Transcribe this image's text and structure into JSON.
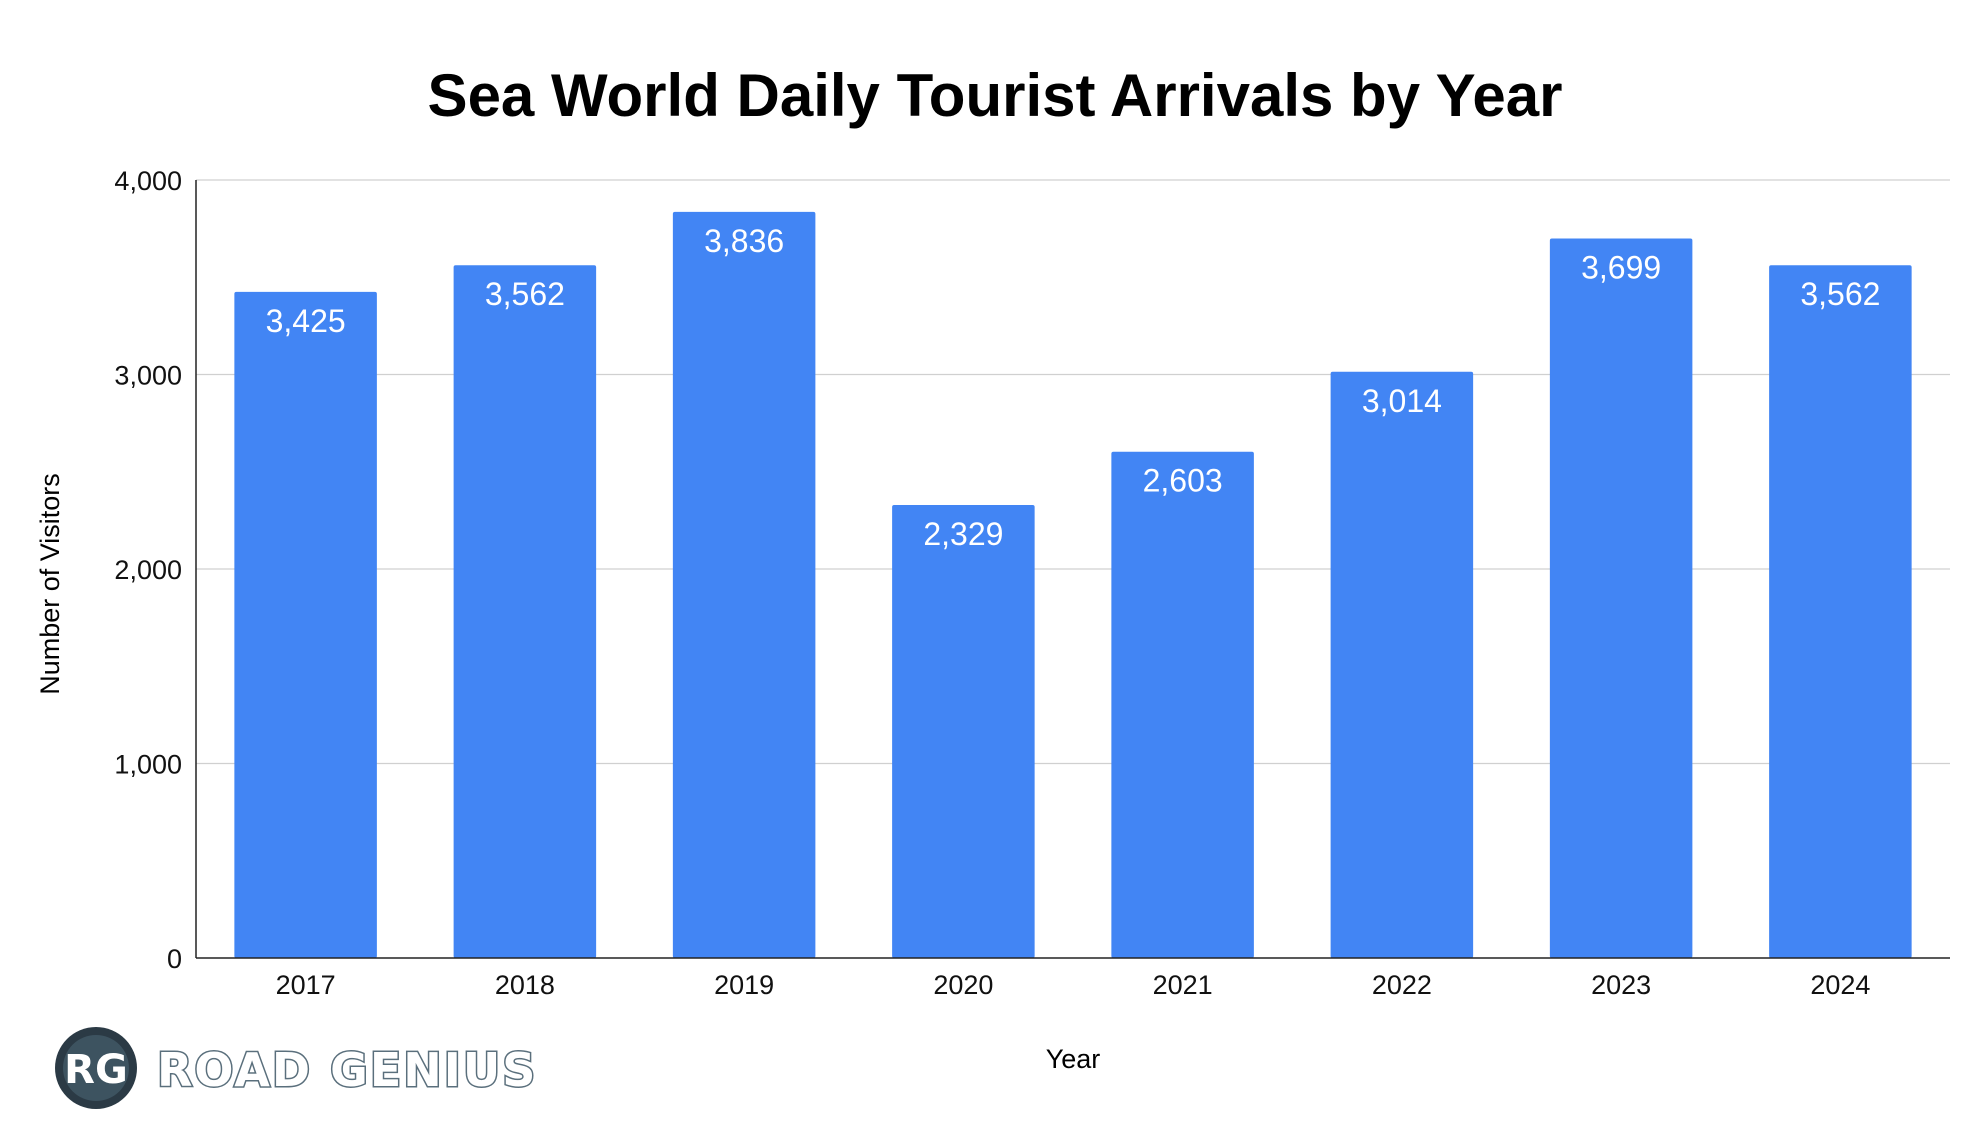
{
  "chart_data": {
    "type": "bar",
    "title": "Sea World Daily Tourist Arrivals by Year",
    "xlabel": "Year",
    "ylabel": "Number of Visitors",
    "categories": [
      "2017",
      "2018",
      "2019",
      "2020",
      "2021",
      "2022",
      "2023",
      "2024"
    ],
    "values": [
      3425,
      3562,
      3836,
      2329,
      2603,
      3014,
      3699,
      3562
    ],
    "data_labels": [
      "3,425",
      "3,562",
      "3,836",
      "2,329",
      "2,603",
      "3,014",
      "3,699",
      "3,562"
    ],
    "ylim": [
      0,
      4000
    ],
    "yticks": [
      0,
      1000,
      2000,
      3000,
      4000
    ],
    "ytick_labels": [
      "0",
      "1,000",
      "2,000",
      "3,000",
      "4,000"
    ],
    "grid": true,
    "legend": "none",
    "bar_color": "#4285f4"
  },
  "logo": {
    "monogram": "RG",
    "wordmark": "ROAD GENIUS",
    "ring_color": "#2b3a45",
    "inner_color": "#3d5360",
    "text_color": "#5a6f7c"
  }
}
